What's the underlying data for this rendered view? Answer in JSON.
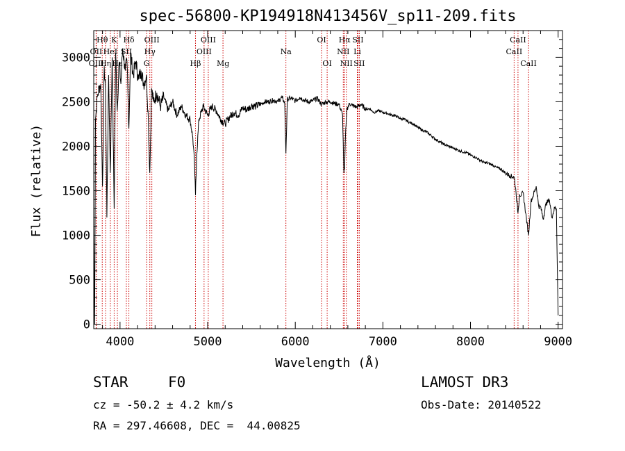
{
  "chart_data": {
    "type": "line",
    "title": "spec-56800-KP194918N413456V_sp11-209.fits",
    "xlabel": "Wavelength (Å)",
    "ylabel": "Flux (relative)",
    "xlim": [
      3700,
      9050
    ],
    "ylim": [
      -50,
      3300
    ],
    "xticks": [
      4000,
      5000,
      6000,
      7000,
      8000,
      9000
    ],
    "yticks": [
      0,
      500,
      1000,
      1500,
      2000,
      2500,
      3000
    ],
    "grid": false,
    "series": [
      {
        "x": [
          3700,
          3710,
          3720,
          3740,
          3760,
          3780,
          3800,
          3820,
          3835,
          3850,
          3870,
          3889,
          3910,
          3933,
          3950,
          3968,
          3990,
          4010,
          4030,
          4060,
          4080,
          4101,
          4120,
          4150,
          4180,
          4210,
          4240,
          4270,
          4300,
          4320,
          4340,
          4360,
          4380,
          4420,
          4460,
          4500,
          4550,
          4600,
          4650,
          4700,
          4750,
          4800,
          4830,
          4850,
          4861,
          4875,
          4900,
          4950,
          5000,
          5050,
          5100,
          5150,
          5200,
          5250,
          5300,
          5350,
          5400,
          5450,
          5500,
          5550,
          5600,
          5650,
          5700,
          5750,
          5800,
          5850,
          5880,
          5893,
          5910,
          5950,
          6000,
          6050,
          6100,
          6150,
          6200,
          6250,
          6300,
          6350,
          6400,
          6450,
          6500,
          6540,
          6555,
          6563,
          6572,
          6590,
          6620,
          6650,
          6700,
          6750,
          6800,
          6850,
          6900,
          6950,
          7000,
          7050,
          7100,
          7150,
          7200,
          7250,
          7300,
          7350,
          7400,
          7450,
          7500,
          7550,
          7600,
          7650,
          7700,
          7750,
          7800,
          7850,
          7900,
          7950,
          8000,
          8050,
          8100,
          8150,
          8200,
          8250,
          8300,
          8350,
          8400,
          8450,
          8500,
          8520,
          8542,
          8560,
          8580,
          8600,
          8630,
          8662,
          8690,
          8720,
          8750,
          8780,
          8800,
          8830,
          8860,
          8900,
          8930,
          8960,
          8980,
          8990,
          9000
        ],
        "y": [
          1150,
          0,
          2300,
          2550,
          2650,
          2700,
          1550,
          2900,
          2600,
          1200,
          2800,
          1700,
          3000,
          1300,
          3050,
          2400,
          2950,
          2700,
          3100,
          2850,
          2950,
          2200,
          3050,
          2800,
          2950,
          2750,
          2850,
          2700,
          2800,
          2400,
          1700,
          2650,
          2500,
          2600,
          2450,
          2550,
          2400,
          2500,
          2350,
          2450,
          2350,
          2300,
          2100,
          1800,
          1450,
          1900,
          2300,
          2450,
          2350,
          2450,
          2400,
          2300,
          2250,
          2330,
          2380,
          2350,
          2430,
          2410,
          2460,
          2450,
          2470,
          2500,
          2500,
          2520,
          2500,
          2550,
          2480,
          1920,
          2530,
          2540,
          2510,
          2550,
          2520,
          2500,
          2510,
          2540,
          2470,
          2500,
          2500,
          2480,
          2470,
          2350,
          1700,
          1750,
          2100,
          2420,
          2480,
          2460,
          2440,
          2470,
          2420,
          2420,
          2380,
          2400,
          2380,
          2370,
          2350,
          2340,
          2310,
          2300,
          2270,
          2250,
          2210,
          2180,
          2160,
          2120,
          2080,
          2050,
          2020,
          2000,
          1980,
          1960,
          1940,
          1930,
          1900,
          1880,
          1850,
          1820,
          1810,
          1790,
          1760,
          1740,
          1700,
          1670,
          1650,
          1480,
          1250,
          1460,
          1450,
          1480,
          1250,
          1000,
          1380,
          1460,
          1550,
          1320,
          1320,
          1180,
          1350,
          1400,
          1200,
          1310,
          1300,
          700,
          100
        ]
      }
    ],
    "line_marks": [
      {
        "label": "Hθ",
        "x": 3797,
        "row": 1
      },
      {
        "label": "OII",
        "x": 3727,
        "row": 2
      },
      {
        "label": "OIII",
        "x": 3729,
        "row": 3
      },
      {
        "label": "K",
        "x": 3933,
        "row": 1
      },
      {
        "label": "HeI",
        "x": 3889,
        "row": 2
      },
      {
        "label": "Hη",
        "x": 3835,
        "row": 3
      },
      {
        "label": "Hε",
        "x": 3970,
        "row": 3
      },
      {
        "label": "Hδ",
        "x": 4101,
        "row": 1
      },
      {
        "label": "SII",
        "x": 4072,
        "row": 2
      },
      {
        "label": "OIII",
        "x": 4363,
        "row": 1
      },
      {
        "label": "Hγ",
        "x": 4340,
        "row": 2
      },
      {
        "label": "G",
        "x": 4304,
        "row": 3
      },
      {
        "label": "OIII",
        "x": 5007,
        "row": 1
      },
      {
        "label": "OIII",
        "x": 4959,
        "row": 2
      },
      {
        "label": "Hβ",
        "x": 4861,
        "row": 3
      },
      {
        "label": "Mg",
        "x": 5175,
        "row": 3
      },
      {
        "label": "Na",
        "x": 5893,
        "row": 2
      },
      {
        "label": "OI",
        "x": 6300,
        "row": 1
      },
      {
        "label": "OI",
        "x": 6364,
        "row": 3
      },
      {
        "label": "Hα",
        "x": 6563,
        "row": 1
      },
      {
        "label": "NII",
        "x": 6548,
        "row": 2
      },
      {
        "label": "NII",
        "x": 6583,
        "row": 3
      },
      {
        "label": "SII",
        "x": 6716,
        "row": 1
      },
      {
        "label": "Li",
        "x": 6708,
        "row": 2
      },
      {
        "label": "SII",
        "x": 6731,
        "row": 3
      },
      {
        "label": "CaII",
        "x": 8542,
        "row": 1
      },
      {
        "label": "CaII",
        "x": 8498,
        "row": 2
      },
      {
        "label": "CaII",
        "x": 8662,
        "row": 3
      }
    ]
  },
  "info": {
    "object_class": "STAR",
    "subclass": "F0",
    "survey": "LAMOST DR3",
    "velocity": "cz = -50.2 ± 4.2 km/s",
    "obs_date": "Obs-Date: 20140522",
    "coords": "RA = 297.46608, DEC =  44.00825"
  },
  "colors": {
    "spectrum": "#000000",
    "line_marker": "#cc0000",
    "frame": "#000000"
  }
}
